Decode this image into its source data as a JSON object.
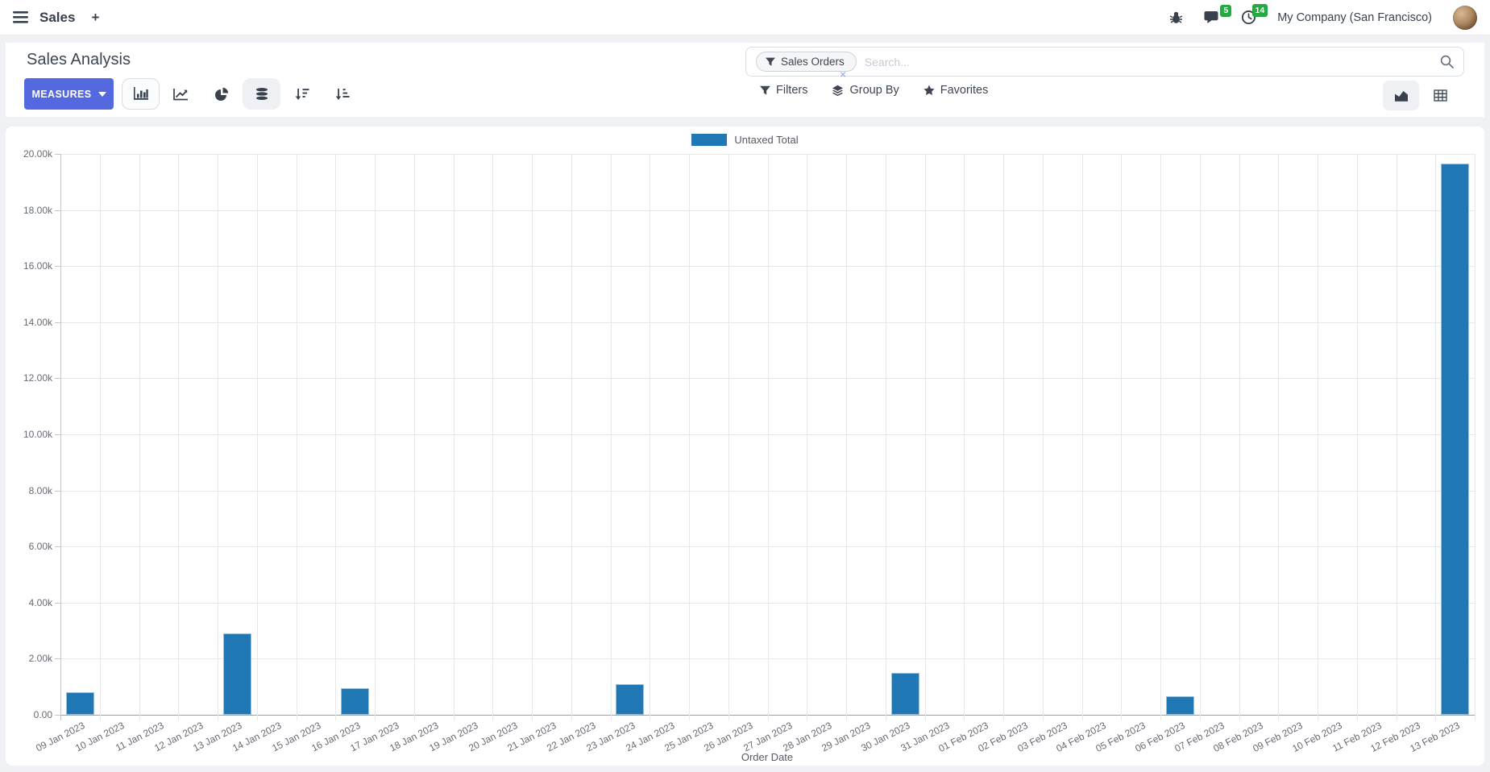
{
  "navbar": {
    "app_name": "Sales",
    "plus_label": "+",
    "company": "My Company (San Francisco)",
    "message_badge": "5",
    "activity_badge": "14"
  },
  "control_panel": {
    "title": "Sales Analysis",
    "measures_label": "MEASURES",
    "search": {
      "facet_label": "Sales Orders",
      "placeholder": "Search...",
      "facet_remove": "×"
    },
    "filters_label": "Filters",
    "group_by_label": "Group By",
    "favorites_label": "Favorites"
  },
  "chart_data": {
    "type": "bar",
    "title": "",
    "xlabel": "Order Date",
    "ylabel": "",
    "ylim": [
      0,
      20000
    ],
    "ytick_step": 2000,
    "ytick_labels": [
      "0.00",
      "2.00k",
      "4.00k",
      "6.00k",
      "8.00k",
      "10.00k",
      "12.00k",
      "14.00k",
      "16.00k",
      "18.00k",
      "20.00k"
    ],
    "grid": true,
    "legend_position": "top",
    "legend": [
      {
        "label": "Untaxed Total",
        "color": "#1f77b4"
      }
    ],
    "categories": [
      "09 Jan 2023",
      "10 Jan 2023",
      "11 Jan 2023",
      "12 Jan 2023",
      "13 Jan 2023",
      "14 Jan 2023",
      "15 Jan 2023",
      "16 Jan 2023",
      "17 Jan 2023",
      "18 Jan 2023",
      "19 Jan 2023",
      "20 Jan 2023",
      "21 Jan 2023",
      "22 Jan 2023",
      "23 Jan 2023",
      "24 Jan 2023",
      "25 Jan 2023",
      "26 Jan 2023",
      "27 Jan 2023",
      "28 Jan 2023",
      "29 Jan 2023",
      "30 Jan 2023",
      "31 Jan 2023",
      "01 Feb 2023",
      "02 Feb 2023",
      "03 Feb 2023",
      "04 Feb 2023",
      "05 Feb 2023",
      "06 Feb 2023",
      "07 Feb 2023",
      "08 Feb 2023",
      "09 Feb 2023",
      "10 Feb 2023",
      "11 Feb 2023",
      "12 Feb 2023",
      "13 Feb 2023"
    ],
    "series": [
      {
        "name": "Untaxed Total",
        "color": "#1f77b4",
        "values": [
          800,
          0,
          0,
          0,
          2900,
          0,
          0,
          950,
          0,
          0,
          0,
          0,
          0,
          0,
          1100,
          0,
          0,
          0,
          0,
          0,
          0,
          1500,
          0,
          0,
          0,
          0,
          0,
          0,
          650,
          0,
          0,
          0,
          0,
          0,
          0,
          19650
        ]
      }
    ]
  },
  "colors": {
    "accent": "#5468e0",
    "bar": "#1f77b4",
    "badge_green": "#28a745"
  }
}
